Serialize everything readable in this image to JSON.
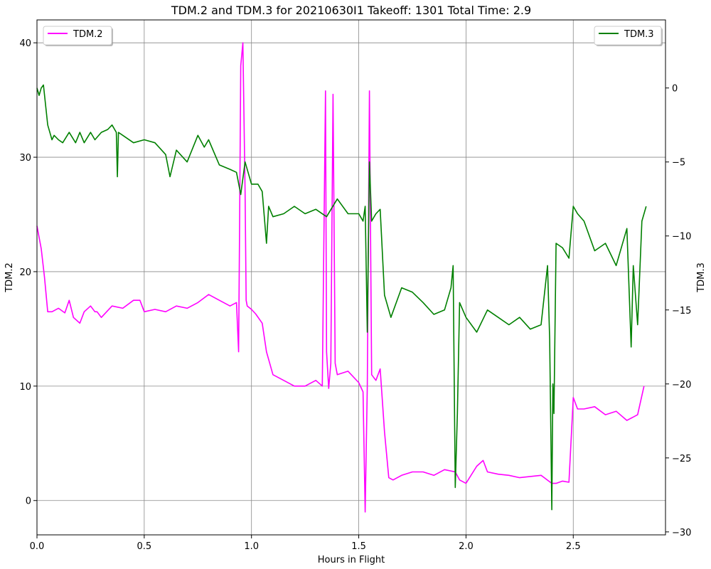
{
  "chart_data": {
    "type": "line",
    "title": "TDM.2 and TDM.3 for 20210630I1 Takeoff: 1301 Total Time: 2.9",
    "xlabel": "Hours in Flight",
    "ylabel_left": "TDM.2",
    "ylabel_right": "TDM.3",
    "xlim": [
      0,
      2.93
    ],
    "ylim_left": [
      -3,
      42
    ],
    "ylim_right": [
      -30.2,
      4.6
    ],
    "x_ticks": [
      "0.0",
      "0.5",
      "1.0",
      "1.5",
      "2.0",
      "2.5"
    ],
    "x_tick_values": [
      0,
      0.5,
      1.0,
      1.5,
      2.0,
      2.5
    ],
    "left_ticks": [
      "0",
      "10",
      "20",
      "30",
      "40"
    ],
    "left_tick_values": [
      0,
      10,
      20,
      30,
      40
    ],
    "right_ticks": [
      "0",
      "−5",
      "−10",
      "−15",
      "−20",
      "−25",
      "−30"
    ],
    "right_tick_values": [
      0,
      -5,
      -10,
      -15,
      -20,
      -25,
      -30
    ],
    "grid": true,
    "series": [
      {
        "name": "TDM.2",
        "axis": "left",
        "color": "#ff00ff",
        "legend_position": "top-left",
        "x": [
          0.0,
          0.02,
          0.035,
          0.05,
          0.07,
          0.1,
          0.13,
          0.15,
          0.17,
          0.2,
          0.22,
          0.25,
          0.27,
          0.28,
          0.3,
          0.35,
          0.4,
          0.45,
          0.48,
          0.5,
          0.55,
          0.6,
          0.65,
          0.7,
          0.75,
          0.8,
          0.85,
          0.9,
          0.93,
          0.94,
          0.945,
          0.95,
          0.96,
          0.97,
          0.975,
          0.98,
          1.0,
          1.02,
          1.05,
          1.07,
          1.1,
          1.15,
          1.2,
          1.25,
          1.3,
          1.33,
          1.345,
          1.35,
          1.36,
          1.37,
          1.38,
          1.39,
          1.4,
          1.45,
          1.5,
          1.52,
          1.53,
          1.54,
          1.55,
          1.56,
          1.58,
          1.6,
          1.62,
          1.64,
          1.66,
          1.7,
          1.75,
          1.8,
          1.85,
          1.9,
          1.95,
          1.97,
          2.0,
          2.05,
          2.08,
          2.1,
          2.15,
          2.2,
          2.25,
          2.3,
          2.35,
          2.4,
          2.42,
          2.45,
          2.48,
          2.5,
          2.52,
          2.55,
          2.6,
          2.65,
          2.7,
          2.75,
          2.8,
          2.83
        ],
        "y": [
          24,
          22,
          19.5,
          16.5,
          16.5,
          16.8,
          16.4,
          17.5,
          16,
          15.5,
          16.5,
          17,
          16.5,
          16.5,
          16,
          17,
          16.8,
          17.5,
          17.5,
          16.5,
          16.7,
          16.5,
          17,
          16.8,
          17.3,
          18,
          17.5,
          17,
          17.3,
          13,
          25,
          38,
          40,
          27,
          17.5,
          17,
          16.7,
          16.3,
          15.5,
          13,
          11,
          10.5,
          10,
          10,
          10.5,
          10,
          35.8,
          13,
          9.8,
          12,
          35.5,
          12,
          11,
          11.3,
          10.3,
          9.5,
          -1,
          10,
          35.8,
          11,
          10.5,
          11.5,
          6,
          2,
          1.8,
          2.2,
          2.5,
          2.5,
          2.2,
          2.7,
          2.5,
          1.8,
          1.5,
          3,
          3.5,
          2.5,
          2.3,
          2.2,
          2,
          2.1,
          2.2,
          1.5,
          1.5,
          1.7,
          1.6,
          9,
          8,
          8,
          8.2,
          7.5,
          7.8,
          7,
          7.5,
          10
        ]
      },
      {
        "name": "TDM.3",
        "axis": "right",
        "color": "#008000",
        "legend_position": "top-right",
        "x": [
          0.0,
          0.01,
          0.02,
          0.03,
          0.05,
          0.07,
          0.08,
          0.1,
          0.12,
          0.15,
          0.18,
          0.2,
          0.22,
          0.25,
          0.27,
          0.3,
          0.33,
          0.35,
          0.37,
          0.375,
          0.38,
          0.4,
          0.45,
          0.5,
          0.55,
          0.6,
          0.62,
          0.65,
          0.7,
          0.75,
          0.78,
          0.8,
          0.85,
          0.9,
          0.93,
          0.95,
          0.97,
          1.0,
          1.03,
          1.05,
          1.07,
          1.08,
          1.1,
          1.15,
          1.2,
          1.25,
          1.3,
          1.35,
          1.4,
          1.45,
          1.5,
          1.52,
          1.53,
          1.54,
          1.55,
          1.56,
          1.58,
          1.6,
          1.62,
          1.65,
          1.7,
          1.75,
          1.8,
          1.85,
          1.9,
          1.93,
          1.94,
          1.95,
          1.96,
          1.97,
          2.0,
          2.05,
          2.1,
          2.15,
          2.2,
          2.25,
          2.3,
          2.35,
          2.38,
          2.39,
          2.4,
          2.405,
          2.41,
          2.42,
          2.45,
          2.48,
          2.5,
          2.52,
          2.55,
          2.6,
          2.65,
          2.7,
          2.75,
          2.77,
          2.78,
          2.8,
          2.82,
          2.84
        ],
        "y": [
          0,
          -0.5,
          0,
          0.2,
          -2.5,
          -3.5,
          -3.2,
          -3.5,
          -3.7,
          -3,
          -3.7,
          -3,
          -3.7,
          -3,
          -3.5,
          -3,
          -2.8,
          -2.5,
          -3,
          -6,
          -3,
          -3.2,
          -3.7,
          -3.5,
          -3.7,
          -4.5,
          -6,
          -4.2,
          -5,
          -3.2,
          -4,
          -3.5,
          -5.2,
          -5.5,
          -5.7,
          -7.2,
          -5,
          -6.5,
          -6.5,
          -7,
          -10.5,
          -8,
          -8.7,
          -8.5,
          -8,
          -8.5,
          -8.2,
          -8.7,
          -7.5,
          -8.5,
          -8.5,
          -9,
          -8,
          -16.5,
          -5,
          -9,
          -8.5,
          -8.2,
          -14,
          -15.5,
          -13.5,
          -13.8,
          -14.5,
          -15.3,
          -15,
          -13.5,
          -12,
          -27,
          -22,
          -14.5,
          -15.5,
          -16.5,
          -15,
          -15.5,
          -16,
          -15.5,
          -16.3,
          -16,
          -12,
          -17,
          -28.5,
          -20,
          -22,
          -10.5,
          -10.8,
          -11.5,
          -8,
          -8.5,
          -9,
          -11,
          -10.5,
          -12,
          -9.5,
          -17.5,
          -12,
          -16,
          -9,
          -8
        ]
      }
    ],
    "legend": [
      "TDM.2",
      "TDM.3"
    ]
  }
}
